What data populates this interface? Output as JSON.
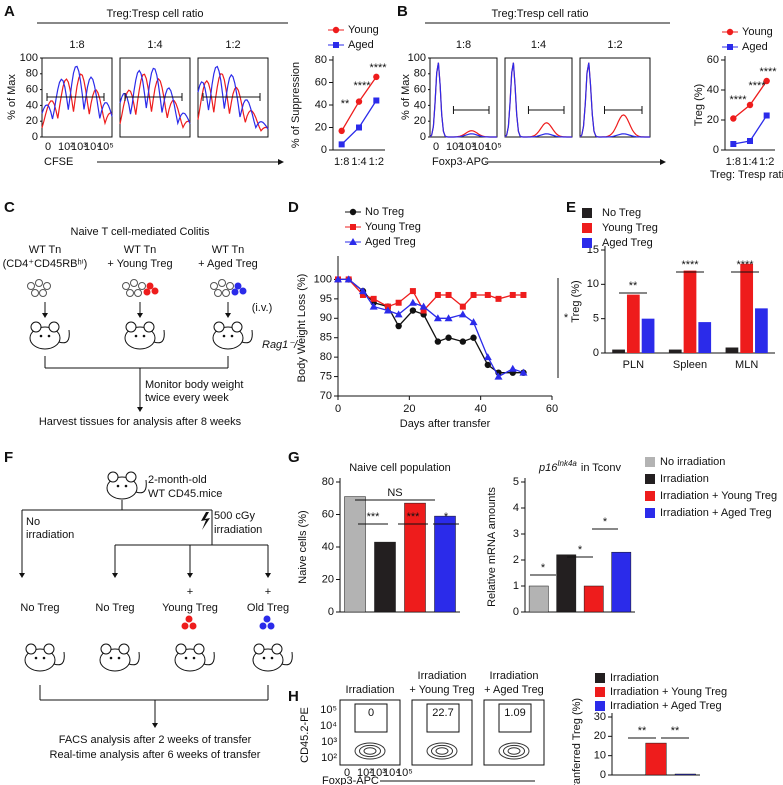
{
  "panel_labels": [
    "A",
    "B",
    "C",
    "D",
    "E",
    "F",
    "G",
    "H"
  ],
  "panel_a": {
    "title": "Treg:Tresp cell ratio",
    "ratios": [
      "1:8",
      "1:4",
      "1:2"
    ],
    "ylabel": "% of Max",
    "yticks": [
      0,
      20,
      40,
      60,
      80,
      100
    ],
    "xticks": [
      "0",
      "10²",
      "10³",
      "10⁴",
      "10⁵"
    ],
    "xlabel": "CFSE"
  },
  "panel_b": {
    "title": "Treg:Tresp cell ratio",
    "ratios": [
      "1:8",
      "1:4",
      "1:2"
    ],
    "ylabel": "% of Max",
    "yticks": [
      0,
      20,
      40,
      60,
      80,
      100
    ],
    "xticks": [
      "0",
      "10²",
      "10³",
      "10⁴",
      "10⁵"
    ],
    "xlabel": "Foxp3-APC"
  },
  "panel_c": {
    "title": "Naive T cell-mediated Colitis",
    "groups": [
      [
        "WT Tn",
        "(CD4⁺CD45RBʰⁱ)"
      ],
      [
        "WT Tn",
        "+ Young Treg"
      ],
      [
        "WT Tn",
        "+ Aged  Treg"
      ]
    ],
    "route": "(i.v.)",
    "host": "Rag1⁻/⁻",
    "steps": [
      "Monitor body weight",
      "twice every week",
      "Harvest tissues for analysis after 8 weeks"
    ]
  },
  "panel_f": {
    "mouse": [
      "2-month-old",
      "WT CD45.mice"
    ],
    "no_irradiation": [
      "No",
      "irradiation"
    ],
    "irradiation": [
      "500 cGy",
      "irradiation"
    ],
    "groups": [
      [
        "No Treg"
      ],
      [
        "No Treg"
      ],
      [
        "+",
        "Young Treg"
      ],
      [
        "+",
        "Old Treg"
      ]
    ],
    "steps": [
      "FACS analysis after 2 weeks of transfer",
      "Real-time analysis after 6 weeks of transfer"
    ]
  },
  "panel_g_legend": [
    {
      "name": "No irradiation",
      "color": "#b3b3b3"
    },
    {
      "name": "Irradiation",
      "color": "#231f20"
    },
    {
      "name": "Irradiation + Young Treg",
      "color": "#ee1c1c"
    },
    {
      "name": "Irradiation + Aged Treg",
      "color": "#2b2bea"
    }
  ],
  "panel_h": {
    "conditions": [
      [
        "Irradiation"
      ],
      [
        "Irradiation",
        "+ Young Treg"
      ],
      [
        "Irradiation",
        "+ Aged Treg"
      ]
    ],
    "gate_values": [
      0,
      22.7,
      1.09
    ],
    "ylabel": "CD45.2-PE",
    "yticks": [
      "10²",
      "10³",
      "10⁴",
      "10⁵"
    ],
    "xticks": [
      "0",
      "10²",
      "10³",
      "10⁴",
      "10⁵"
    ],
    "xlabel": "Foxp3-APC"
  },
  "chart_data": [
    {
      "type": "line",
      "categories": [
        "1:8",
        "1:4",
        "1:2"
      ],
      "ylabel": "% of Suppression",
      "ylim": [
        0,
        80
      ],
      "yticks": [
        0,
        20,
        40,
        60,
        80
      ],
      "series": [
        {
          "name": "Young",
          "color": "#ee1c1c",
          "marker": "circle",
          "values": [
            17,
            43,
            65
          ]
        },
        {
          "name": "Aged",
          "color": "#2b2bea",
          "marker": "square",
          "values": [
            5,
            20,
            44
          ]
        }
      ],
      "legend": "upper left",
      "annotations": [
        "**",
        "****",
        "****"
      ]
    },
    {
      "type": "line",
      "categories": [
        "1:8",
        "1:4",
        "1:2"
      ],
      "xlabel": "Treg: Tresp ratio",
      "ylabel": "Treg (%)",
      "ylim": [
        0,
        60
      ],
      "yticks": [
        0,
        20,
        40,
        60
      ],
      "series": [
        {
          "name": "Young",
          "color": "#ee1c1c",
          "marker": "circle",
          "values": [
            21,
            30,
            46
          ]
        },
        {
          "name": "Aged",
          "color": "#2b2bea",
          "marker": "square",
          "values": [
            4,
            6,
            23
          ]
        }
      ],
      "legend": "upper left",
      "annotations": [
        "****",
        "****",
        "****"
      ]
    },
    {
      "type": "line",
      "x": [
        0,
        3,
        7,
        10,
        14,
        17,
        21,
        24,
        28,
        31,
        35,
        38,
        42,
        45,
        49,
        52
      ],
      "xlabel": "Days after transfer",
      "ylabel": "Body Weight Loss (%)",
      "xlim": [
        0,
        60
      ],
      "xticks": [
        0,
        20,
        40,
        60
      ],
      "ylim": [
        70,
        105
      ],
      "yticks": [
        70,
        75,
        80,
        85,
        90,
        95,
        100
      ],
      "series": [
        {
          "name": "No Treg",
          "color": "#111111",
          "marker": "circle",
          "values": [
            100,
            100,
            97,
            94,
            93,
            88,
            92,
            91,
            84,
            85,
            84,
            85,
            78,
            76,
            76,
            76
          ]
        },
        {
          "name": "Young Treg",
          "color": "#ee1c1c",
          "marker": "square",
          "values": [
            100,
            100,
            96,
            95,
            93,
            94,
            97,
            92,
            96,
            96,
            93,
            96,
            96,
            95,
            96,
            96
          ]
        },
        {
          "name": "Aged Treg",
          "color": "#2b2bea",
          "marker": "triangle",
          "values": [
            100,
            100,
            97,
            93,
            92,
            91,
            94,
            93,
            90,
            90,
            91,
            89,
            80,
            75,
            77,
            76
          ]
        }
      ],
      "legend": "upper left",
      "annotations": [
        "*"
      ]
    },
    {
      "type": "bar",
      "categories": [
        "PLN",
        "Spleen",
        "MLN"
      ],
      "ylabel": "Treg (%)",
      "ylim": [
        0,
        15
      ],
      "yticks": [
        0,
        5,
        10,
        15
      ],
      "series": [
        {
          "name": "No Treg",
          "color": "#231f20",
          "values": [
            0.5,
            0.5,
            0.8
          ]
        },
        {
          "name": "Young Treg",
          "color": "#ee1c1c",
          "values": [
            8.5,
            12,
            13
          ]
        },
        {
          "name": "Aged Treg",
          "color": "#2b2bea",
          "values": [
            5,
            4.5,
            6.5
          ]
        }
      ],
      "legend": "upper left",
      "annotations": [
        "**",
        "****",
        "****"
      ]
    },
    {
      "type": "bar",
      "title": "Naive cell population",
      "categories": [
        null,
        null,
        null,
        null
      ],
      "ylabel": "Naive cells (%)",
      "ylim": [
        0,
        80
      ],
      "yticks": [
        0,
        20,
        40,
        60,
        80
      ],
      "values": [
        71,
        43,
        67,
        59
      ],
      "colors": [
        "#b3b3b3",
        "#231f20",
        "#ee1c1c",
        "#2b2bea"
      ],
      "annotations": [
        "NS",
        "***",
        "***",
        "*"
      ]
    },
    {
      "type": "bar",
      "title": {
        "gene": "p16",
        "sup": "Ink4a",
        "rest": "in Tconv"
      },
      "categories": [
        null,
        null,
        null,
        null
      ],
      "ylabel": "Relative mRNA amounts",
      "ylim": [
        0,
        5
      ],
      "yticks": [
        0,
        1,
        2,
        3,
        4,
        5
      ],
      "values": [
        1.0,
        2.2,
        1.0,
        2.3
      ],
      "colors": [
        "#b3b3b3",
        "#231f20",
        "#ee1c1c",
        "#2b2bea"
      ],
      "annotations": [
        "*",
        "*",
        "*"
      ]
    },
    {
      "type": "bar",
      "categories": [
        null,
        null,
        null
      ],
      "ylabel": "Tranferred Treg (%)",
      "ylim": [
        0,
        30
      ],
      "yticks": [
        0,
        10,
        20,
        30
      ],
      "values": [
        0,
        16.5,
        0.5
      ],
      "colors": [
        "#231f20",
        "#ee1c1c",
        "#2b2bea"
      ],
      "legend_names": [
        "Irradiation",
        "Irradiation + Young Treg",
        "Irradiation + Aged Treg"
      ],
      "annotations": [
        "**",
        "**"
      ]
    }
  ]
}
